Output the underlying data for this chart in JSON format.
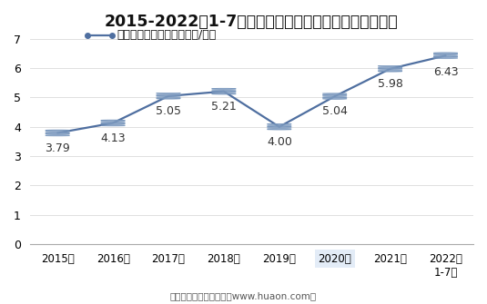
{
  "title": "2015-2022年1-7月郑州商品交易所油菜籽期货成交均价",
  "legend_label": "油菜籽期货成交均价（万元/手）",
  "x_labels": [
    "2015年",
    "2016年",
    "2017年",
    "2018年",
    "2019年",
    "2020年",
    "2021年",
    "2022年\n1-7月"
  ],
  "x_values": [
    0,
    1,
    2,
    3,
    4,
    5,
    6,
    7
  ],
  "y_values": [
    3.79,
    4.13,
    5.05,
    5.21,
    4.0,
    5.04,
    5.98,
    6.43
  ],
  "data_labels": [
    "3.79",
    "4.13",
    "5.05",
    "5.21",
    "4.00",
    "5.04",
    "5.98",
    "6.43"
  ],
  "line_color": "#4f6fa0",
  "line_color_dark": "#3d5a8a",
  "marker_face": "#b8c8e0",
  "marker_edge": "#7090b8",
  "ylim": [
    0,
    7
  ],
  "yticks": [
    0,
    1,
    2,
    3,
    4,
    5,
    6,
    7
  ],
  "title_fontsize": 12.5,
  "label_fontsize": 9,
  "legend_fontsize": 9,
  "footer": "制图：华经产业研究院（www.huaon.com）",
  "bg_color": "#ffffff",
  "highlight_bg": "#dce8f5",
  "highlight_idx": 5
}
